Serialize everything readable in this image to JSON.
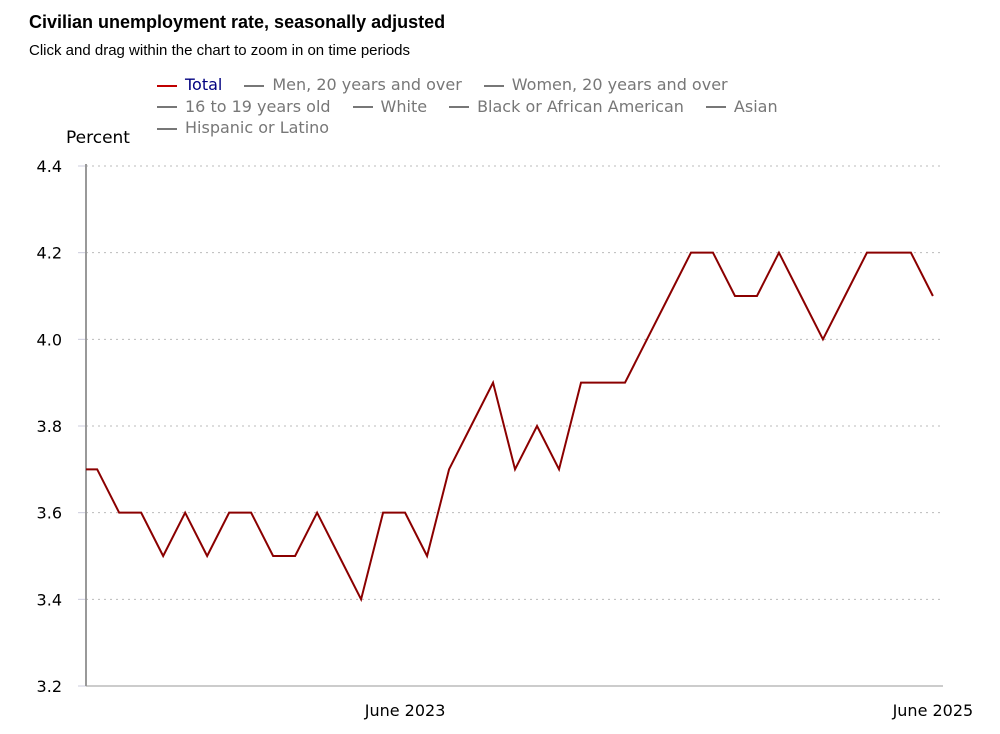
{
  "header": {
    "title": "Civilian unemployment rate, seasonally adjusted",
    "subtitle": "Click and drag within the chart to zoom in on time periods"
  },
  "legend": {
    "items": [
      {
        "label": "Total",
        "color": "#8b0000",
        "active": true
      },
      {
        "label": "Men, 20 years and over",
        "color": "#777777",
        "active": false
      },
      {
        "label": "Women, 20 years and over",
        "color": "#777777",
        "active": false
      },
      {
        "label": "16 to 19 years old",
        "color": "#777777",
        "active": false
      },
      {
        "label": "White",
        "color": "#777777",
        "active": false
      },
      {
        "label": "Black or African American",
        "color": "#777777",
        "active": false
      },
      {
        "label": "Asian",
        "color": "#777777",
        "active": false
      },
      {
        "label": "Hispanic or Latino",
        "color": "#777777",
        "active": false
      }
    ]
  },
  "chart_data": {
    "type": "line",
    "title": "Civilian unemployment rate, seasonally adjusted",
    "ylabel": "Percent",
    "xlabel": "",
    "ylim": [
      3.2,
      4.4
    ],
    "yticks": [
      "3.2",
      "3.4",
      "3.6",
      "3.8",
      "4.0",
      "4.2",
      "4.4"
    ],
    "xlim": [
      "2022-03-16",
      "2025-06-15"
    ],
    "xticks": [
      {
        "date": "2023-06",
        "label": "June 2023"
      },
      {
        "date": "2025-06",
        "label": "June 2025"
      }
    ],
    "grid": "horizontal dotted",
    "legend_position": "top",
    "series": [
      {
        "name": "Total",
        "color": "#8b0000",
        "x": [
          "2022-03",
          "2022-04",
          "2022-05",
          "2022-06",
          "2022-07",
          "2022-08",
          "2022-09",
          "2022-10",
          "2022-11",
          "2022-12",
          "2023-01",
          "2023-02",
          "2023-03",
          "2023-04",
          "2023-05",
          "2023-06",
          "2023-07",
          "2023-08",
          "2023-09",
          "2023-10",
          "2023-11",
          "2023-12",
          "2024-01",
          "2024-02",
          "2024-03",
          "2024-04",
          "2024-05",
          "2024-06",
          "2024-07",
          "2024-08",
          "2024-09",
          "2024-10",
          "2024-11",
          "2024-12",
          "2025-01",
          "2025-02",
          "2025-03",
          "2025-04",
          "2025-05",
          "2025-06"
        ],
        "values": [
          3.7,
          3.7,
          3.6,
          3.6,
          3.5,
          3.6,
          3.5,
          3.6,
          3.6,
          3.5,
          3.5,
          3.6,
          3.5,
          3.4,
          3.6,
          3.6,
          3.5,
          3.7,
          3.8,
          3.9,
          3.7,
          3.8,
          3.7,
          3.9,
          3.9,
          3.9,
          4.0,
          4.1,
          4.2,
          4.2,
          4.1,
          4.1,
          4.2,
          4.1,
          4.0,
          4.1,
          4.2,
          4.2,
          4.2,
          4.1
        ]
      }
    ]
  }
}
